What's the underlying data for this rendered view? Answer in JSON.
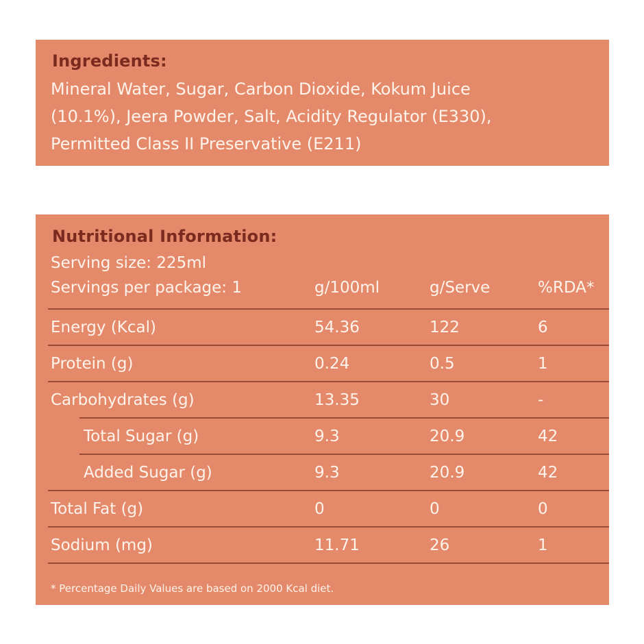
{
  "ingredients": {
    "title": "Ingredients:",
    "line1": "Mineral Water, Sugar, Carbon Dioxide, Kokum Juice",
    "line2": "(10.1%), Jeera Powder, Salt, Acidity Regulator (E330),",
    "line3": "Permitted Class II Preservative (E211)"
  },
  "nutrition": {
    "title": "Nutritional Information:",
    "serving_size": "Serving size: 225ml",
    "servings_per_package": "Servings per package: 1",
    "columns": [
      "g/100ml",
      "g/Serve",
      "%RDA*"
    ],
    "rows": [
      {
        "label": "Energy (Kcal)",
        "per100": "54.36",
        "serve": "122",
        "rda": "6"
      },
      {
        "label": "Protein (g)",
        "per100": "0.24",
        "serve": "0.5",
        "rda": "1"
      },
      {
        "label": "Carbohydrates (g)",
        "per100": "13.35",
        "serve": "30",
        "rda": "-"
      },
      {
        "label": "Total Sugar (g)",
        "per100": "9.3",
        "serve": "20.9",
        "rda": "42"
      },
      {
        "label": "Added Sugar (g)",
        "per100": "9.3",
        "serve": "20.9",
        "rda": "42"
      },
      {
        "label": "Total Fat (g)",
        "per100": "0",
        "serve": "0",
        "rda": "0"
      },
      {
        "label": "Sodium (mg)",
        "per100": "11.71",
        "serve": "26",
        "rda": "1"
      }
    ],
    "footnote": "* Percentage Daily Values are based on 2000 Kcal diet."
  },
  "colors": {
    "panel_bg": "#e48a6a",
    "heading": "#7a2a1e",
    "rule": "#9a4b37",
    "text": "#fff3ec"
  }
}
